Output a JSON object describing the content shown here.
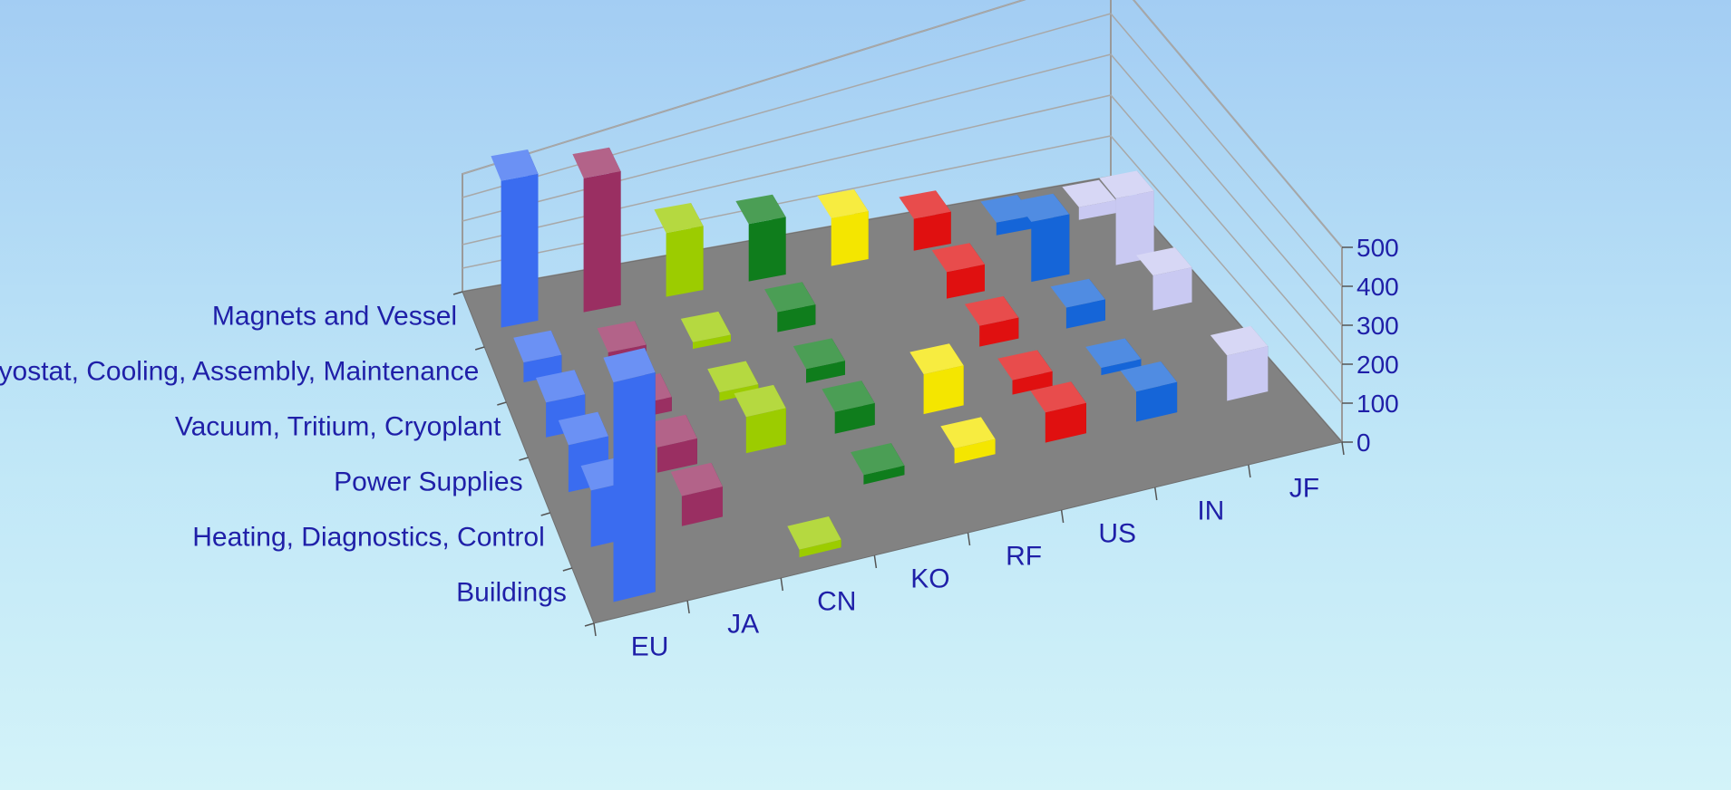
{
  "chart_data": {
    "type": "bar",
    "style": "3d-column",
    "title": "",
    "x_categories": [
      "EU",
      "JA",
      "CN",
      "KO",
      "RF",
      "US",
      "IN",
      "JF"
    ],
    "y_categories": [
      "Magnets and Vessel",
      "Cryostat, Cooling, Assembly, Maintenance",
      "Vacuum, Tritium, Cryoplant",
      "Power Supplies",
      "Heating, Diagnostics, Control",
      "Buildings"
    ],
    "zlim": [
      0,
      500
    ],
    "z_ticks": [
      "0",
      "100",
      "200",
      "300",
      "400",
      "500"
    ],
    "grid": true,
    "series": [
      {
        "name": "EU",
        "color": "#3a6cf0",
        "values": [
          460,
          60,
          100,
          130,
          150,
          560
        ]
      },
      {
        "name": "JA",
        "color": "#9a2f62",
        "values": [
          420,
          40,
          40,
          70,
          80,
          0
        ]
      },
      {
        "name": "CN",
        "color": "#9ccc00",
        "values": [
          200,
          20,
          25,
          100,
          0,
          20
        ]
      },
      {
        "name": "KO",
        "color": "#0f7d1c",
        "values": [
          180,
          60,
          40,
          60,
          25,
          0
        ]
      },
      {
        "name": "RF",
        "color": "#f4e600",
        "values": [
          150,
          0,
          0,
          110,
          40,
          0
        ]
      },
      {
        "name": "US",
        "color": "#e01010",
        "values": [
          100,
          80,
          60,
          40,
          80,
          0
        ]
      },
      {
        "name": "IN",
        "color": "#1565d8",
        "values": [
          40,
          180,
          60,
          20,
          80,
          0
        ]
      },
      {
        "name": "JF",
        "color": "#c9c9f2",
        "values": [
          40,
          200,
          100,
          0,
          120,
          0
        ]
      }
    ]
  }
}
